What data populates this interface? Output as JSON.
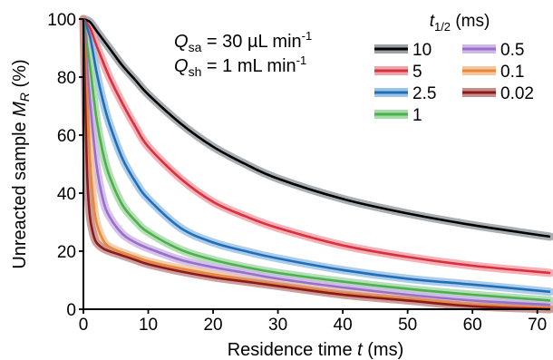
{
  "chart_data": {
    "type": "line",
    "xlabel_pre": "Residence time ",
    "xlabel_var": "t",
    "xlabel_post": " (ms)",
    "ylabel_pre": "Unreacted sample ",
    "ylabel_var": "M",
    "ylabel_sub": "R",
    "ylabel_post": " (%)",
    "xlim": [
      0,
      72
    ],
    "ylim": [
      0,
      100
    ],
    "xticks": [
      0,
      10,
      20,
      30,
      40,
      50,
      60,
      70
    ],
    "yticks": [
      0,
      20,
      40,
      60,
      80,
      100
    ],
    "annotations": {
      "qsa": {
        "sym": "Q",
        "sub": "sa",
        "value": " = 30 µL min",
        "exp": "-1"
      },
      "qsh": {
        "sym": "Q",
        "sub": "sh",
        "value": " = 1 mL min",
        "exp": "-1"
      }
    },
    "legend": {
      "title_sym": "t",
      "title_sub": "1/2",
      "title_unit": " (ms)",
      "placement": "top-right"
    },
    "series": [
      {
        "name": "10",
        "color": "#000000",
        "band": "#9aa0a6",
        "x": [
          0,
          1,
          2,
          4,
          6,
          8,
          10,
          15,
          20,
          25,
          30,
          40,
          50,
          60,
          72
        ],
        "y": [
          100,
          99,
          96,
          90,
          84,
          79,
          74,
          64,
          56,
          50,
          45,
          38,
          33,
          29,
          25
        ]
      },
      {
        "name": "5",
        "color": "#d9303f",
        "band": "#f2a3aa",
        "x": [
          0,
          1,
          2,
          4,
          6,
          8,
          10,
          15,
          20,
          25,
          30,
          40,
          50,
          60,
          72
        ],
        "y": [
          100,
          97,
          91,
          80,
          71,
          63,
          56,
          45,
          37,
          32,
          28,
          22,
          18,
          15,
          12.5
        ]
      },
      {
        "name": "2.5",
        "color": "#1f6fb8",
        "band": "#9dc3e6",
        "x": [
          0,
          1,
          2,
          3,
          4,
          6,
          8,
          10,
          15,
          20,
          25,
          30,
          40,
          50,
          60,
          72
        ],
        "y": [
          100,
          94,
          82,
          72,
          64,
          52,
          44,
          38,
          28,
          23,
          20,
          17.5,
          13.5,
          10.5,
          8.5,
          6
        ]
      },
      {
        "name": "1",
        "color": "#4caf50",
        "band": "#a8dba8",
        "x": [
          0,
          1,
          2,
          3,
          4,
          6,
          8,
          10,
          15,
          20,
          25,
          30,
          40,
          50,
          60,
          72
        ],
        "y": [
          100,
          84,
          66,
          54,
          46,
          36,
          30.5,
          26.5,
          20.5,
          17,
          14.5,
          12.5,
          9.5,
          7,
          5,
          3
        ]
      },
      {
        "name": "0.5",
        "color": "#9a6fc8",
        "band": "#cfb8e8",
        "x": [
          0,
          1,
          2,
          3,
          4,
          6,
          8,
          10,
          15,
          20,
          25,
          30,
          40,
          50,
          60,
          72
        ],
        "y": [
          100,
          72,
          50,
          38,
          32,
          26,
          23,
          21,
          17,
          14.5,
          12.5,
          10.5,
          7.5,
          5,
          3,
          1.5
        ]
      },
      {
        "name": "0.1",
        "color": "#e8883a",
        "band": "#f5c69d",
        "x": [
          0,
          0.5,
          1,
          1.5,
          2,
          3,
          4,
          6,
          8,
          10,
          15,
          20,
          25,
          30,
          40,
          50,
          60,
          72
        ],
        "y": [
          100,
          75,
          52,
          38,
          30,
          24,
          21.5,
          19.5,
          18,
          16.5,
          14,
          12,
          10,
          8.5,
          5.5,
          3.5,
          1.5,
          0.5
        ]
      },
      {
        "name": "0.02",
        "color": "#8b1a1a",
        "band": "#c48e8e",
        "x": [
          0,
          0.3,
          0.6,
          1,
          1.5,
          2,
          3,
          4,
          6,
          8,
          10,
          15,
          20,
          25,
          30,
          40,
          50,
          60,
          72
        ],
        "y": [
          100,
          70,
          45,
          32,
          26,
          23,
          21,
          20,
          18.5,
          17,
          15.5,
          13,
          11,
          9.5,
          8,
          5,
          3,
          1,
          0
        ]
      }
    ]
  }
}
